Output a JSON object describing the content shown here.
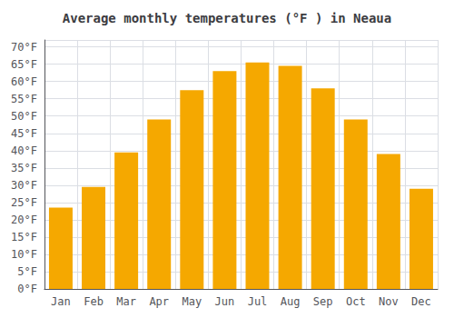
{
  "chart_data": {
    "type": "bar",
    "title": "Average monthly temperatures (°F ) in Neaua",
    "categories": [
      "Jan",
      "Feb",
      "Mar",
      "Apr",
      "May",
      "Jun",
      "Jul",
      "Aug",
      "Sep",
      "Oct",
      "Nov",
      "Dec"
    ],
    "values": [
      23.5,
      29.5,
      39.5,
      49.0,
      57.5,
      63.0,
      65.5,
      64.5,
      58.0,
      49.0,
      39.0,
      29.0
    ],
    "color": "#F5A800",
    "ylim": [
      0,
      72
    ],
    "yticks": [
      {
        "value": 0,
        "label": "0°F"
      },
      {
        "value": 5,
        "label": "5°F"
      },
      {
        "value": 10,
        "label": "10°F"
      },
      {
        "value": 15,
        "label": "15°F"
      },
      {
        "value": 20,
        "label": "20°F"
      },
      {
        "value": 25,
        "label": "25°F"
      },
      {
        "value": 30,
        "label": "30°F"
      },
      {
        "value": 35,
        "label": "35°F"
      },
      {
        "value": 40,
        "label": "40°F"
      },
      {
        "value": 45,
        "label": "45°F"
      },
      {
        "value": 50,
        "label": "50°F"
      },
      {
        "value": 55,
        "label": "55°F"
      },
      {
        "value": 60,
        "label": "60°F"
      },
      {
        "value": 65,
        "label": "65°F"
      },
      {
        "value": 70,
        "label": "70°F"
      }
    ],
    "grid": true
  }
}
